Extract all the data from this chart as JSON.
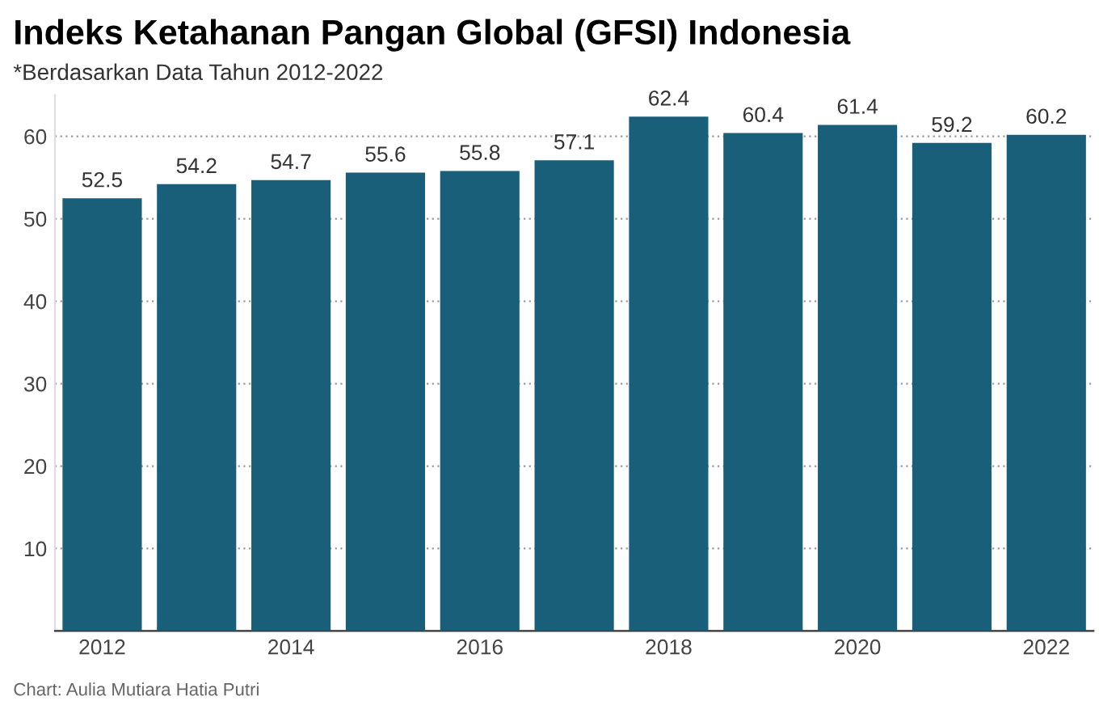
{
  "chart_data": {
    "type": "bar",
    "title": "Indeks Ketahanan Pangan Global (GFSI) Indonesia",
    "subtitle": "*Berdasarkan Data Tahun 2012-2022",
    "categories": [
      "2012",
      null,
      "2014",
      null,
      "2016",
      null,
      "2018",
      null,
      "2020",
      null,
      "2022"
    ],
    "values": [
      52.5,
      54.2,
      54.7,
      55.6,
      55.8,
      57.1,
      62.4,
      60.4,
      61.4,
      59.2,
      60.2
    ],
    "color": "#1a5f7a",
    "ylim": [
      0,
      65
    ],
    "yticks": [
      10,
      20,
      30,
      40,
      50,
      60
    ],
    "grid": "y",
    "data_labels": true,
    "annotations": [
      "Chart: Aulia Mutiara Hatia Putri"
    ]
  }
}
